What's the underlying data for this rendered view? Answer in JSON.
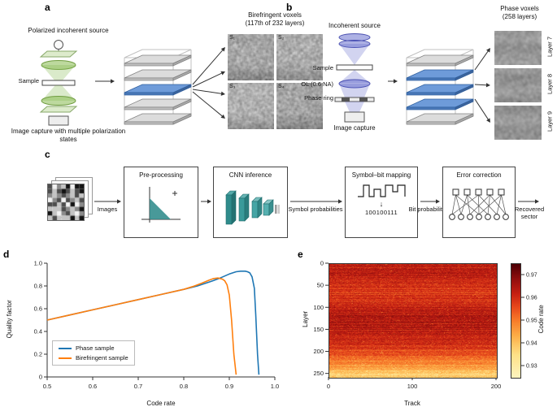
{
  "figure": {
    "panel_a": {
      "label": "a",
      "source_label": "Polarized incoherent source",
      "sample_label": "Sample",
      "capture_label": "Image capture with multiple polarization states",
      "voxel_title": [
        "Birefringent voxels",
        "(117th of 232 layers)"
      ],
      "image_labels": [
        "S₁",
        "S₂",
        "S₃",
        "S₄"
      ],
      "stack": {
        "layers": 5,
        "highlighted": [
          2
        ]
      }
    },
    "panel_b": {
      "label": "b",
      "source_label": "Incoherent source",
      "sample_label": "Sample",
      "ol_label": "OL (0.6 NA)",
      "phase_ring_label": "Phase ring",
      "capture_label": "Image capture",
      "voxel_title": [
        "Phase voxels",
        "(258 layers)"
      ],
      "image_labels": [
        "Layer 7",
        "Layer 8",
        "Layer 9"
      ],
      "stack": {
        "layers": 5,
        "highlighted": [
          1,
          2,
          3
        ]
      }
    },
    "panel_c": {
      "label": "c",
      "images_label": "Images",
      "boxes": [
        {
          "title": "Pre-processing"
        },
        {
          "title": "CNN inference"
        },
        {
          "title": "Symbol–bit mapping",
          "binary": "100100111"
        },
        {
          "title": "Error correction"
        }
      ],
      "arrow_labels": {
        "symbol": "Symbol probabilities",
        "bit": "Bit probabilities",
        "recovered": "Recovered sector"
      }
    },
    "panel_d": {
      "label": "d"
    },
    "panel_e": {
      "label": "e"
    }
  },
  "icons": {
    "down_arrow": "↓"
  },
  "colors": {
    "layer_gray_top": "#dcdcdc",
    "layer_gray_front": "#bfbfbf",
    "layer_gray_side": "#a8a8a8",
    "layer_gray_edge": "#808080",
    "layer_blue_top": "#6e9bd9",
    "layer_blue_front": "#4b79b8",
    "layer_blue_side": "#3c639a",
    "layer_blue_edge": "#2f5f9e",
    "optics_green": "#86b94e",
    "optics_blue": "#5c63c9",
    "icon_teal": "#2f8b8b",
    "arrow": "#333333",
    "wireframe": "#c0c0c0"
  },
  "chart_data": [
    {
      "type": "line",
      "title": "",
      "xlabel": "Code rate",
      "ylabel": "Quality factor",
      "xlim": [
        0.5,
        1.0
      ],
      "ylim": [
        0,
        1.0
      ],
      "xticks": [
        0.5,
        0.6,
        0.7,
        0.8,
        0.9,
        1.0
      ],
      "yticks": [
        0,
        0.2,
        0.4,
        0.6,
        0.8,
        1.0
      ],
      "legend_position": "lower left",
      "grid": false,
      "series": [
        {
          "name": "Phase sample",
          "color": "#1f77b4",
          "x": [
            0.5,
            0.55,
            0.6,
            0.65,
            0.7,
            0.75,
            0.8,
            0.83,
            0.86,
            0.88,
            0.9,
            0.915,
            0.925,
            0.935,
            0.94,
            0.945,
            0.95,
            0.955,
            0.958,
            0.962,
            0.965
          ],
          "y": [
            0.5,
            0.545,
            0.59,
            0.635,
            0.68,
            0.725,
            0.77,
            0.8,
            0.84,
            0.87,
            0.905,
            0.925,
            0.93,
            0.93,
            0.925,
            0.915,
            0.88,
            0.78,
            0.55,
            0.2,
            0.02
          ]
        },
        {
          "name": "Birefringent sample",
          "color": "#ff7f0e",
          "x": [
            0.5,
            0.55,
            0.6,
            0.65,
            0.7,
            0.75,
            0.8,
            0.82,
            0.84,
            0.855,
            0.865,
            0.875,
            0.885,
            0.89,
            0.895,
            0.9,
            0.905,
            0.91,
            0.915
          ],
          "y": [
            0.5,
            0.545,
            0.59,
            0.635,
            0.68,
            0.725,
            0.77,
            0.795,
            0.825,
            0.85,
            0.865,
            0.87,
            0.86,
            0.845,
            0.81,
            0.72,
            0.5,
            0.2,
            0.02
          ]
        }
      ]
    },
    {
      "type": "heatmap",
      "xlabel": "Track",
      "ylabel": "Layer",
      "colorbar_label": "Code rate",
      "x_range": [
        0,
        200
      ],
      "y_range": [
        0,
        258
      ],
      "xticks": [
        0,
        100,
        200
      ],
      "yticks": [
        0,
        50,
        100,
        150,
        200,
        250
      ],
      "colorbar_ticks": [
        0.93,
        0.94,
        0.95,
        0.96,
        0.97
      ],
      "value_range": [
        0.925,
        0.975
      ],
      "pattern": {
        "rows": 258,
        "cols": 200,
        "base_code_rate": 0.961,
        "low_band_start_layer": 195,
        "low_band_end_value": 0.937,
        "cell_noise": 0.0045,
        "row_noise": 0.003,
        "note": "code rate ~0.955-0.97 (red/dark red) for layers 0-195, dropping to ~0.93-0.95 (yellow/orange) over the deepest ~60 layers"
      },
      "colormap_stops": [
        {
          "value": 0.925,
          "color": "#fdf4bf"
        },
        {
          "value": 0.935,
          "color": "#fee187"
        },
        {
          "value": 0.943,
          "color": "#fdb04a"
        },
        {
          "value": 0.95,
          "color": "#f87d2a"
        },
        {
          "value": 0.956,
          "color": "#e8491c"
        },
        {
          "value": 0.962,
          "color": "#c62013"
        },
        {
          "value": 0.968,
          "color": "#96100f"
        },
        {
          "value": 0.975,
          "color": "#4f0005"
        }
      ]
    }
  ]
}
